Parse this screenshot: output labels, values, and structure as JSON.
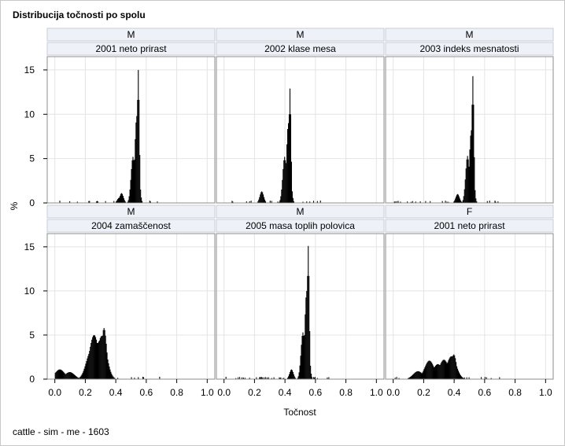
{
  "chart_data": {
    "type": "bar",
    "title": "Distribucija točnosti po spolu",
    "footnote": "cattle - sim - me - 1603",
    "xlabel": "Točnost",
    "ylabel": "%",
    "xlim": [
      -0.05,
      1.05
    ],
    "ylim": [
      0,
      16.5
    ],
    "xticks": [
      "0.0",
      "0.2",
      "0.4",
      "0.6",
      "0.8",
      "1.0"
    ],
    "yticks": [
      "0",
      "5",
      "10",
      "15"
    ],
    "grid": true,
    "bar_color": "#000000",
    "panels": [
      {
        "sex": "M",
        "trait": "2001 neto prirast",
        "peaks": [
          {
            "x": 0.545,
            "y": 15.0
          },
          {
            "x": 0.535,
            "y": 9.8
          },
          {
            "x": 0.51,
            "y": 5.2
          },
          {
            "x": 0.52,
            "y": 3.6
          },
          {
            "x": 0.435,
            "y": 1.1
          },
          {
            "x": 0.42,
            "y": 0.6
          }
        ]
      },
      {
        "sex": "M",
        "trait": "2002 klase mesa",
        "peaks": [
          {
            "x": 0.43,
            "y": 12.9
          },
          {
            "x": 0.42,
            "y": 9.0
          },
          {
            "x": 0.395,
            "y": 5.2
          },
          {
            "x": 0.405,
            "y": 4.0
          },
          {
            "x": 0.245,
            "y": 1.3
          }
        ]
      },
      {
        "sex": "M",
        "trait": "2003 indeks mesnatosti",
        "peaks": [
          {
            "x": 0.52,
            "y": 14.3
          },
          {
            "x": 0.51,
            "y": 8.2
          },
          {
            "x": 0.485,
            "y": 5.3
          },
          {
            "x": 0.495,
            "y": 4.0
          },
          {
            "x": 0.42,
            "y": 1.0
          }
        ]
      },
      {
        "sex": "M",
        "trait": "2004 zamaščenost",
        "peaks": [
          {
            "x": 0.32,
            "y": 5.8
          },
          {
            "x": 0.305,
            "y": 4.9
          },
          {
            "x": 0.29,
            "y": 4.3
          },
          {
            "x": 0.255,
            "y": 5.0
          },
          {
            "x": 0.235,
            "y": 3.2
          },
          {
            "x": 0.03,
            "y": 1.1
          },
          {
            "x": 0.095,
            "y": 0.8
          }
        ]
      },
      {
        "sex": "M",
        "trait": "2005 masa toplih polovica",
        "peaks": [
          {
            "x": 0.55,
            "y": 15.1
          },
          {
            "x": 0.54,
            "y": 10.0
          },
          {
            "x": 0.515,
            "y": 5.3
          },
          {
            "x": 0.525,
            "y": 3.9
          },
          {
            "x": 0.44,
            "y": 1.1
          }
        ]
      },
      {
        "sex": "F",
        "trait": "2001 neto prirast",
        "peaks": [
          {
            "x": 0.395,
            "y": 2.8
          },
          {
            "x": 0.38,
            "y": 2.6
          },
          {
            "x": 0.33,
            "y": 2.2
          },
          {
            "x": 0.235,
            "y": 2.1
          },
          {
            "x": 0.29,
            "y": 1.7
          },
          {
            "x": 0.16,
            "y": 0.9
          }
        ]
      }
    ]
  }
}
